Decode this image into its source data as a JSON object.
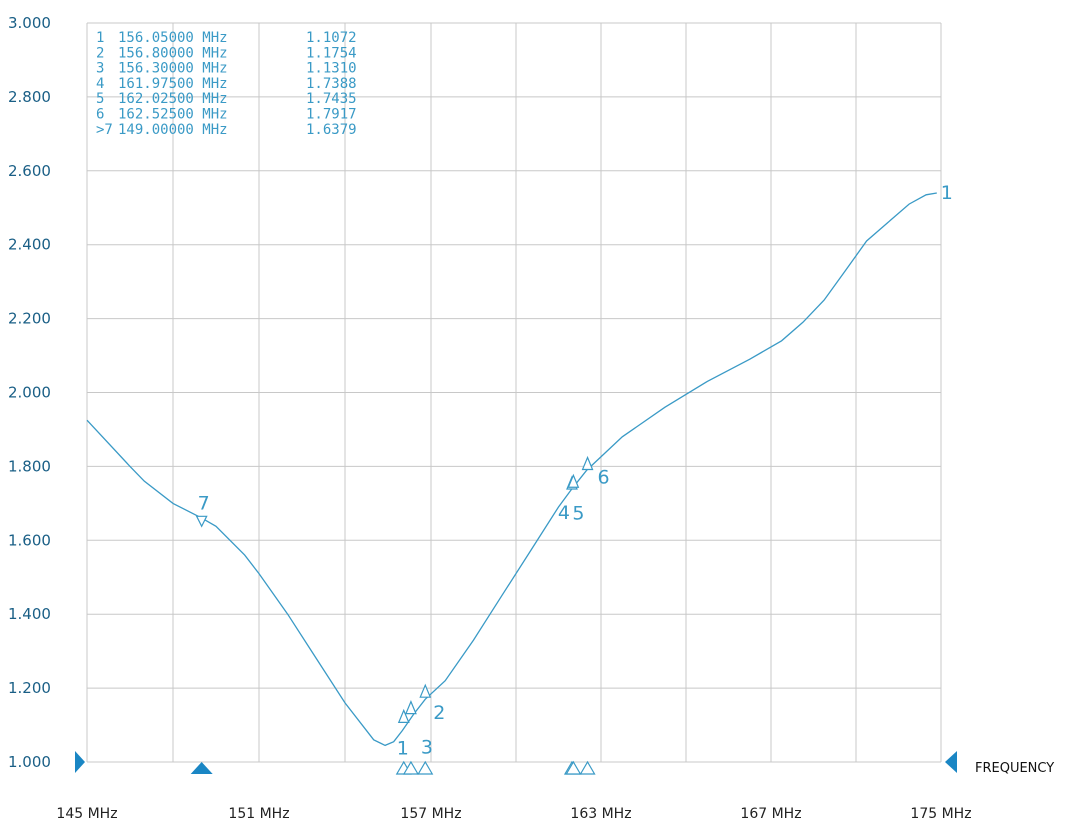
{
  "colors": {
    "trace": "#3a9ac6",
    "grid": "#c8c8c8",
    "axis_marker": "#1a86c4",
    "ytext": "#1a5f86"
  },
  "axis_label": "FREQUENCY",
  "marker_table": [
    {
      "id": "1",
      "freq": "156.05000 MHz",
      "value": "1.1072"
    },
    {
      "id": "2",
      "freq": "156.80000 MHz",
      "value": "1.1754"
    },
    {
      "id": "3",
      "freq": "156.30000 MHz",
      "value": "1.1310"
    },
    {
      "id": "4",
      "freq": "161.97500 MHz",
      "value": "1.7388"
    },
    {
      "id": "5",
      "freq": "162.02500 MHz",
      "value": "1.7435"
    },
    {
      "id": "6",
      "freq": "162.52500 MHz",
      "value": "1.7917"
    },
    {
      "id": ">7",
      "freq": "149.00000 MHz",
      "value": "1.6379"
    }
  ],
  "chart_data": {
    "type": "line",
    "xlim": [
      145,
      175
    ],
    "ylim": [
      1.0,
      3.0
    ],
    "grid": true,
    "ytick_labels": [
      "3.000",
      "2.800",
      "2.600",
      "2.400",
      "2.200",
      "2.000",
      "1.800",
      "1.600",
      "1.400",
      "1.200",
      "1.000"
    ],
    "ytick_values": [
      3.0,
      2.8,
      2.6,
      2.4,
      2.2,
      2.0,
      1.8,
      1.6,
      1.4,
      1.2,
      1.0
    ],
    "xtick_labels": [
      "145 MHz",
      "151 MHz",
      "157 MHz",
      "163 MHz",
      "167 MHz",
      "175 MHz"
    ],
    "xtick_values": [
      145,
      151,
      157,
      163,
      167,
      175
    ],
    "series": [
      {
        "x": [
          145.0,
          146.5,
          147.0,
          148.0,
          149.0,
          149.5,
          150.5,
          151.0,
          152.0,
          153.0,
          154.0,
          155.0,
          155.4,
          155.7,
          156.0,
          156.4,
          156.8,
          157.5,
          158.5,
          159.5,
          160.5,
          161.5,
          162.0,
          162.5,
          163.5,
          164.5,
          165.5,
          166.5,
          167.5,
          168.5,
          169.5,
          170.5,
          171.5,
          172.5,
          173.5,
          174.3,
          174.8
        ],
        "y": [
          1.925,
          1.8,
          1.76,
          1.7,
          1.66,
          1.638,
          1.56,
          1.51,
          1.4,
          1.28,
          1.16,
          1.06,
          1.045,
          1.055,
          1.085,
          1.13,
          1.17,
          1.22,
          1.33,
          1.45,
          1.57,
          1.69,
          1.742,
          1.79,
          1.88,
          1.96,
          2.03,
          2.09,
          2.14,
          2.19,
          2.25,
          2.33,
          2.41,
          2.46,
          2.51,
          2.535,
          2.54
        ]
      }
    ],
    "markers": [
      {
        "label": "1",
        "x": 156.05,
        "y": 1.1072
      },
      {
        "label": "2",
        "x": 156.8,
        "y": 1.1754
      },
      {
        "label": "3",
        "x": 156.3,
        "y": 1.131
      },
      {
        "label": "4",
        "x": 161.975,
        "y": 1.7388
      },
      {
        "label": "5",
        "x": 162.025,
        "y": 1.7435
      },
      {
        "label": "6",
        "x": 162.525,
        "y": 1.7917
      },
      {
        "label": "7",
        "x": 149.0,
        "y": 1.6379
      }
    ],
    "trace_end_label": "1"
  }
}
